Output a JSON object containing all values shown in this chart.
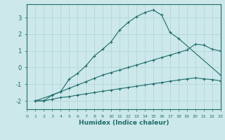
{
  "xlabel": "Humidex (Indice chaleur)",
  "xlim": [
    0,
    23
  ],
  "ylim": [
    -2.5,
    3.8
  ],
  "yticks": [
    -2,
    -1,
    0,
    1,
    2,
    3
  ],
  "xticks": [
    0,
    1,
    2,
    3,
    4,
    5,
    6,
    7,
    8,
    9,
    10,
    11,
    12,
    13,
    14,
    15,
    16,
    17,
    18,
    19,
    20,
    21,
    22,
    23
  ],
  "bg_color": "#cce8ea",
  "line_color": "#1e6b6b",
  "grid_color": "#b8d8da",
  "line1_x": [
    1,
    2,
    3,
    4,
    5,
    6,
    7,
    8,
    9,
    10,
    11,
    12,
    13,
    14,
    15,
    16,
    17,
    18,
    23
  ],
  "line1_y": [
    -2.0,
    -2.0,
    -1.65,
    -1.45,
    -0.7,
    -0.35,
    0.1,
    0.7,
    1.1,
    1.55,
    2.25,
    2.7,
    3.05,
    3.3,
    3.45,
    3.15,
    2.1,
    1.75,
    -0.45
  ],
  "line2_x": [
    1,
    3,
    4,
    5,
    6,
    7,
    8,
    9,
    10,
    11,
    12,
    13,
    14,
    15,
    16,
    17,
    18,
    19,
    20,
    21,
    22,
    23
  ],
  "line2_y": [
    -2.0,
    -1.65,
    -1.45,
    -1.25,
    -1.05,
    -0.85,
    -0.65,
    -0.45,
    -0.3,
    -0.15,
    0.0,
    0.15,
    0.3,
    0.45,
    0.6,
    0.75,
    0.9,
    1.05,
    1.4,
    1.35,
    1.1,
    1.0
  ],
  "line3_x": [
    1,
    2,
    3,
    4,
    5,
    6,
    7,
    8,
    9,
    10,
    11,
    12,
    13,
    14,
    15,
    16,
    17,
    18,
    19,
    20,
    21,
    22,
    23
  ],
  "line3_y": [
    -2.0,
    -2.0,
    -1.9,
    -1.8,
    -1.75,
    -1.65,
    -1.58,
    -1.5,
    -1.42,
    -1.35,
    -1.27,
    -1.2,
    -1.12,
    -1.05,
    -0.97,
    -0.9,
    -0.82,
    -0.75,
    -0.68,
    -0.62,
    -0.68,
    -0.72,
    -0.8
  ]
}
